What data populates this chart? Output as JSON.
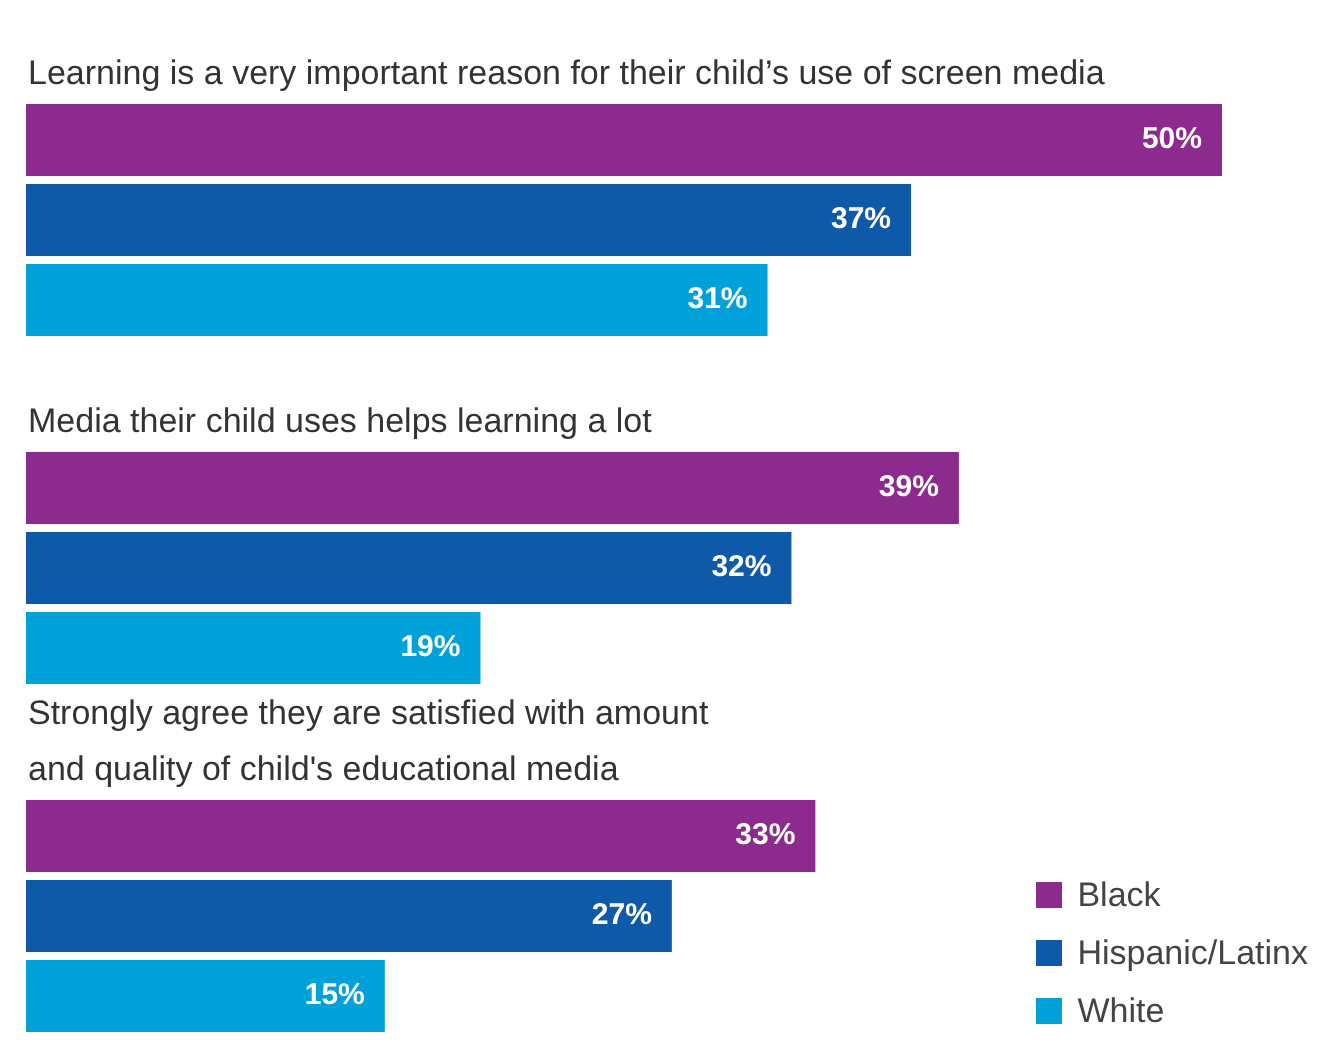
{
  "chart_data": {
    "type": "bar",
    "orientation": "horizontal",
    "legend": "bottom right",
    "categories": [
      "Learning is a very important reason for their child’s use of screen media",
      "Media their child uses helps learning a lot",
      "Strongly agree they are satisfied with amount\nand quality of child's educational media"
    ],
    "series": [
      {
        "name": "Black",
        "color": "#8c2a8e",
        "values": [
          50,
          39,
          33
        ],
        "value_labels": [
          "50%",
          "39%",
          "33%"
        ]
      },
      {
        "name": "Hispanic/Latinx",
        "color": "#0f5aa8",
        "values": [
          37,
          32,
          27
        ],
        "value_labels": [
          "37%",
          "32%",
          "27%"
        ]
      },
      {
        "name": "White",
        "color": "#00a0d8",
        "values": [
          31,
          19,
          15
        ],
        "value_labels": [
          "31%",
          "19%",
          "15%"
        ]
      }
    ]
  }
}
